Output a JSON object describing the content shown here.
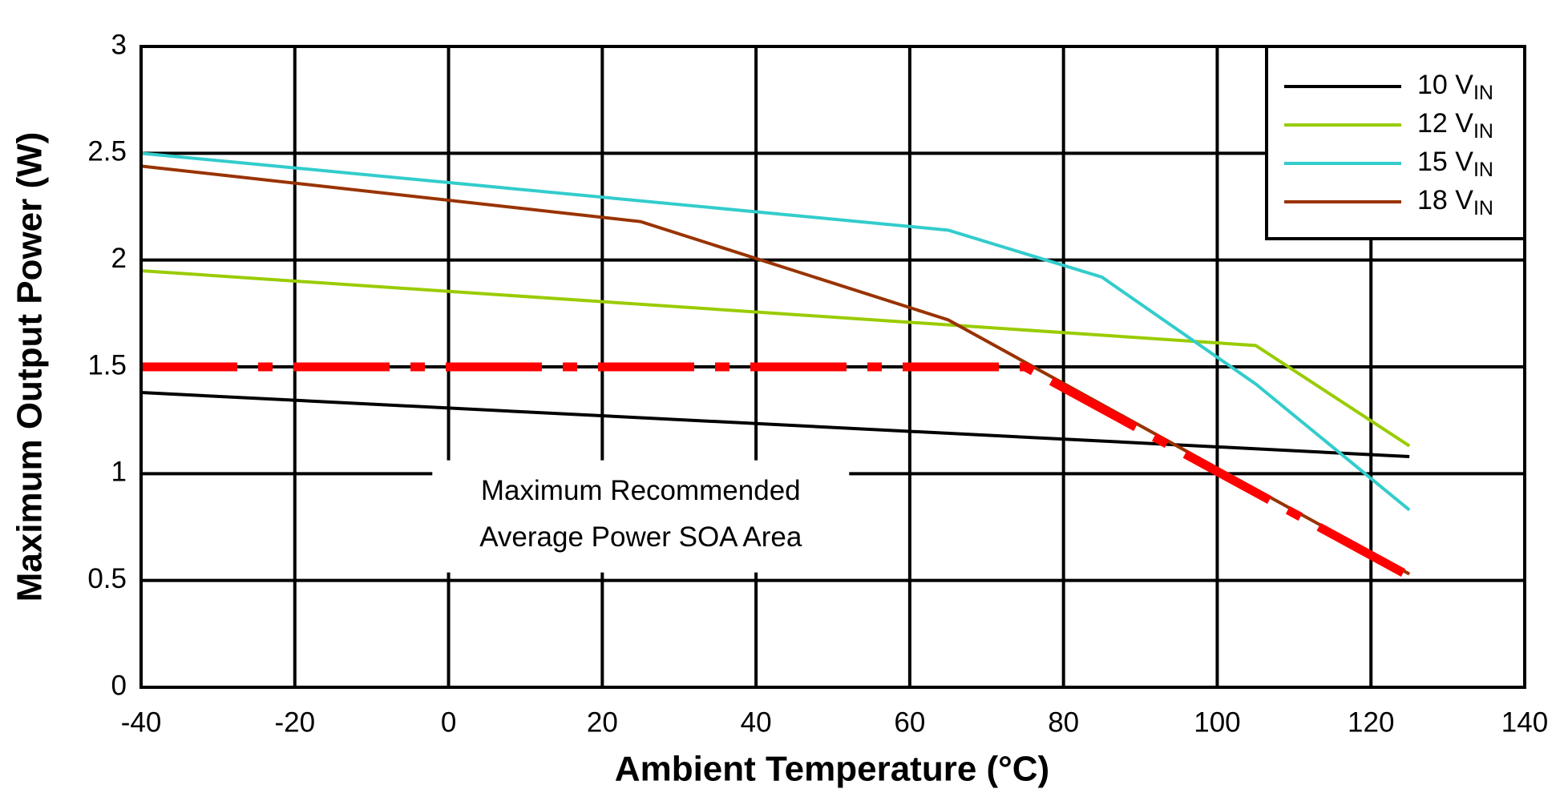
{
  "chart_data": {
    "type": "line",
    "xlabel": "Ambient Temperature (°C)",
    "ylabel": "Maximum Output Power (W)",
    "xlim": [
      -40,
      140
    ],
    "xticks": [
      -40,
      -20,
      0,
      20,
      40,
      60,
      80,
      100,
      120,
      140
    ],
    "ylim": [
      0,
      3
    ],
    "yticks": [
      0,
      0.5,
      1,
      1.5,
      2,
      2.5,
      3
    ],
    "grid": true,
    "legend": "upper right",
    "series": [
      {
        "name": "10 V",
        "name_sub": "IN",
        "color": "#000000",
        "x": [
          -40,
          125
        ],
        "values": [
          1.38,
          1.08
        ]
      },
      {
        "name": "12 V",
        "name_sub": "IN",
        "color": "#99cc00",
        "x": [
          -40,
          105,
          125
        ],
        "values": [
          1.95,
          1.6,
          1.13
        ]
      },
      {
        "name": "15 V",
        "name_sub": "IN",
        "color": "#33cccc",
        "x": [
          -40,
          65,
          85,
          105,
          125
        ],
        "values": [
          2.5,
          2.14,
          1.92,
          1.42,
          0.83
        ]
      },
      {
        "name": "18 V",
        "name_sub": "IN",
        "color": "#993300",
        "x": [
          -40,
          25,
          65,
          125
        ],
        "values": [
          2.44,
          2.18,
          1.72,
          0.53
        ]
      }
    ],
    "soa_boundary": {
      "color": "#ff0000",
      "x": [
        -40,
        75,
        125
      ],
      "values": [
        1.5,
        1.5,
        0.52
      ]
    },
    "annotation": [
      "Maximum Recommended",
      "Average Power SOA Area"
    ]
  }
}
